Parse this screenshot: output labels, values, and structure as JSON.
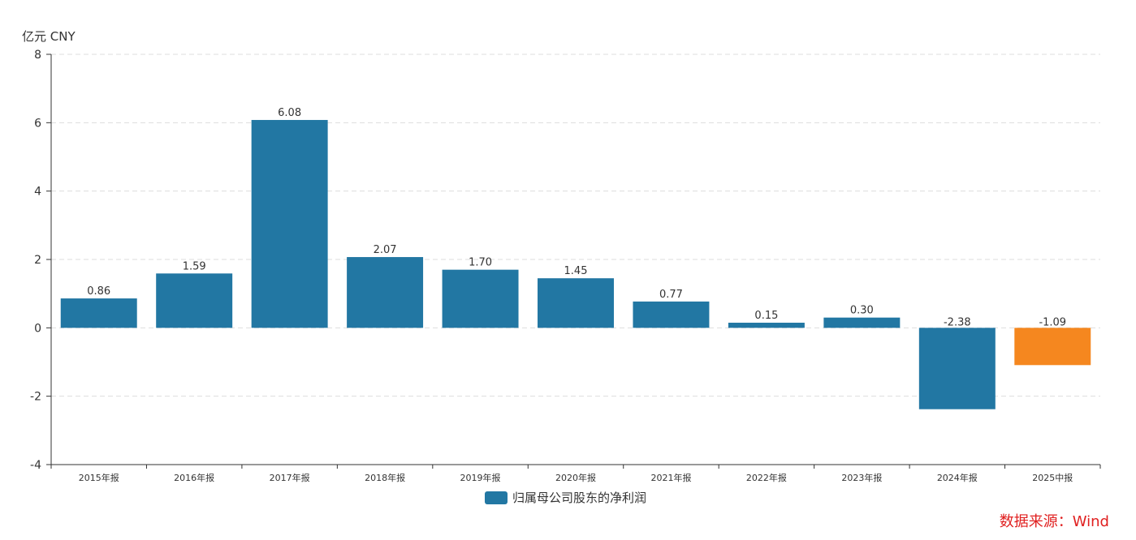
{
  "unit_label": "亿元  CNY",
  "source_text": "数据来源：Wind",
  "colors": {
    "primary": "#2277a3",
    "highlight": "#f5871f",
    "axis": "#333333",
    "grid": "#dddddd"
  },
  "legend": {
    "label": "归属母公司股东的净利润"
  },
  "chart_data": {
    "type": "bar",
    "categories": [
      "2015年报",
      "2016年报",
      "2017年报",
      "2018年报",
      "2019年报",
      "2020年报",
      "2021年报",
      "2022年报",
      "2023年报",
      "2024年报",
      "2025中报"
    ],
    "series": [
      {
        "name": "归属母公司股东的净利润",
        "values": [
          0.86,
          1.59,
          6.08,
          2.07,
          1.7,
          1.45,
          0.77,
          0.15,
          0.3,
          -2.38,
          -1.09
        ],
        "labels": [
          "0.86",
          "1.59",
          "6.08",
          "2.07",
          "1.70",
          "1.45",
          "0.77",
          "0.15",
          "0.30",
          "-2.38",
          "-1.09"
        ],
        "highlight_index": 10
      }
    ],
    "ylabel": "亿元  CNY",
    "ylim": [
      -4,
      8
    ],
    "yticks": [
      -4,
      -2,
      0,
      2,
      4,
      6,
      8
    ],
    "grid": true,
    "legend_position": "bottom-center"
  }
}
